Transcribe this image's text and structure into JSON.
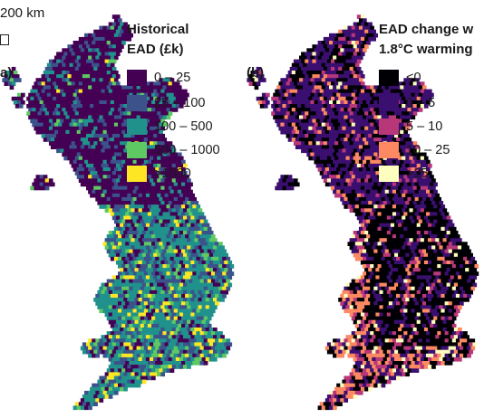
{
  "scale_bar": {
    "label": "200 km"
  },
  "panels": [
    {
      "id": "a",
      "label": "a)",
      "legend_title_lines": [
        "Historical",
        "EAD (£k)"
      ],
      "classes": [
        {
          "label": "0 – 25",
          "color": "#440154"
        },
        {
          "label": "25 – 100",
          "color": "#3b528b"
        },
        {
          "label": "100 – 500",
          "color": "#21918c"
        },
        {
          "label": "500 – 1000",
          "color": "#5ec962"
        },
        {
          "label": ">1000",
          "color": "#fde725"
        }
      ]
    },
    {
      "id": "b",
      "label": "(b)",
      "legend_title_lines": [
        "EAD change w",
        "1.8°C warming"
      ],
      "classes": [
        {
          "label": "<0",
          "color": "#000004"
        },
        {
          "label": "0 – 5",
          "color": "#3b0f70"
        },
        {
          "label": "5 – 10",
          "color": "#b73779"
        },
        {
          "label": "10 – 25",
          "color": "#fc8961"
        },
        {
          "label": ">25",
          "color": "#fcfdbf"
        }
      ]
    }
  ]
}
